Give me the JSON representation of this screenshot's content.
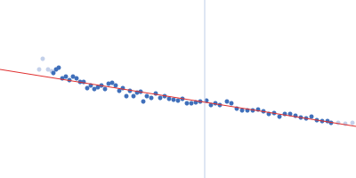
{
  "chart_data": {
    "type": "scatter",
    "xlim": [
      0,
      400
    ],
    "ylim": [
      0,
      200
    ],
    "tick_labels": false,
    "grid": false,
    "series": [
      {
        "type": "line",
        "color": "#c9d5ec",
        "line_style": "solid",
        "x": [
          230,
          230
        ],
        "values": [
          0,
          200
        ]
      },
      {
        "type": "scatter",
        "color": "#c3d0ea",
        "marker": "circle",
        "x": [
          44,
          48,
          54,
          58,
          380,
          388,
          396
        ],
        "values": [
          122,
          134,
          122,
          120,
          62,
          61,
          62
        ]
      },
      {
        "type": "scatter",
        "color": "#3f6fba",
        "marker": "circle",
        "x": [
          60,
          63,
          66,
          70,
          74,
          78,
          82,
          86,
          90,
          94,
          98,
          102,
          106,
          110,
          114,
          118,
          122,
          126,
          130,
          134,
          138,
          142,
          146,
          150,
          154,
          158,
          161,
          165,
          170,
          175,
          180,
          185,
          190,
          195,
          200,
          205,
          210,
          215,
          220,
          225,
          232,
          237,
          242,
          247,
          255,
          260,
          266,
          272,
          278,
          284,
          290,
          296,
          302,
          308,
          314,
          320,
          326,
          332,
          338,
          344,
          350,
          356,
          362,
          368,
          372
        ],
        "values": [
          118,
          122,
          124,
          112,
          114,
          110,
          114,
          112,
          108,
          108,
          101,
          104,
          100,
          102,
          104,
          100,
          106,
          107,
          104,
          98,
          101,
          92,
          98,
          92,
          96,
          97,
          86,
          92,
          90,
          95,
          90,
          92,
          89,
          88,
          87,
          89,
          84,
          84,
          85,
          86,
          87,
          82,
          84,
          82,
          86,
          84,
          78,
          76,
          76,
          76,
          77,
          75,
          72,
          73,
          69,
          72,
          72,
          70,
          68,
          67,
          69,
          65,
          64,
          64,
          62
        ]
      },
      {
        "type": "line",
        "color": "#e03030",
        "line_style": "solid",
        "x": [
          0,
          400
        ],
        "values": [
          122,
          58
        ]
      }
    ]
  }
}
